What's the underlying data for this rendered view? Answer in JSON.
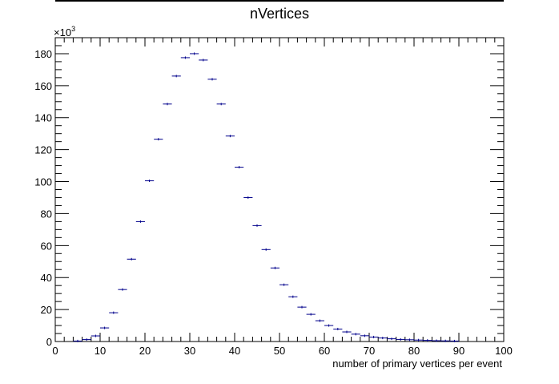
{
  "chart_data": {
    "type": "scatter",
    "title": "nVertices",
    "xlabel": "number of primary vertices per event",
    "ylabel": "",
    "y_multiplier_label": "×10",
    "y_multiplier_exponent": "3",
    "xlim": [
      0,
      100
    ],
    "ylim": [
      0,
      190
    ],
    "x_ticks": [
      0,
      10,
      20,
      30,
      40,
      50,
      60,
      70,
      80,
      90,
      100
    ],
    "y_ticks": [
      0,
      20,
      40,
      60,
      80,
      100,
      120,
      140,
      160,
      180
    ],
    "grid": false,
    "marker_color": "#00008b",
    "bin_width": 2,
    "series": [
      {
        "x": [
          5,
          7,
          9,
          11,
          13,
          15,
          17,
          19,
          21,
          23,
          25,
          27,
          29,
          31,
          33,
          35,
          37,
          39,
          41,
          43,
          45,
          47,
          49,
          51,
          53,
          55,
          57,
          59,
          61,
          63,
          65,
          67,
          69,
          71,
          73,
          75,
          77,
          79,
          81,
          83,
          85,
          87,
          89
        ],
        "values": [
          0.3,
          1.2,
          3.5,
          8.5,
          18,
          32.5,
          51.5,
          75,
          100.5,
          126.5,
          148.5,
          166,
          177.5,
          180,
          176,
          164,
          148.5,
          128.5,
          109,
          90,
          72.5,
          57.5,
          46,
          35.5,
          28,
          21.5,
          17,
          13,
          10,
          7.8,
          6,
          4.6,
          3.6,
          2.8,
          2.2,
          1.7,
          1.3,
          1.1,
          0.9,
          0.7,
          0.5,
          0.4,
          0.3
        ]
      }
    ]
  }
}
